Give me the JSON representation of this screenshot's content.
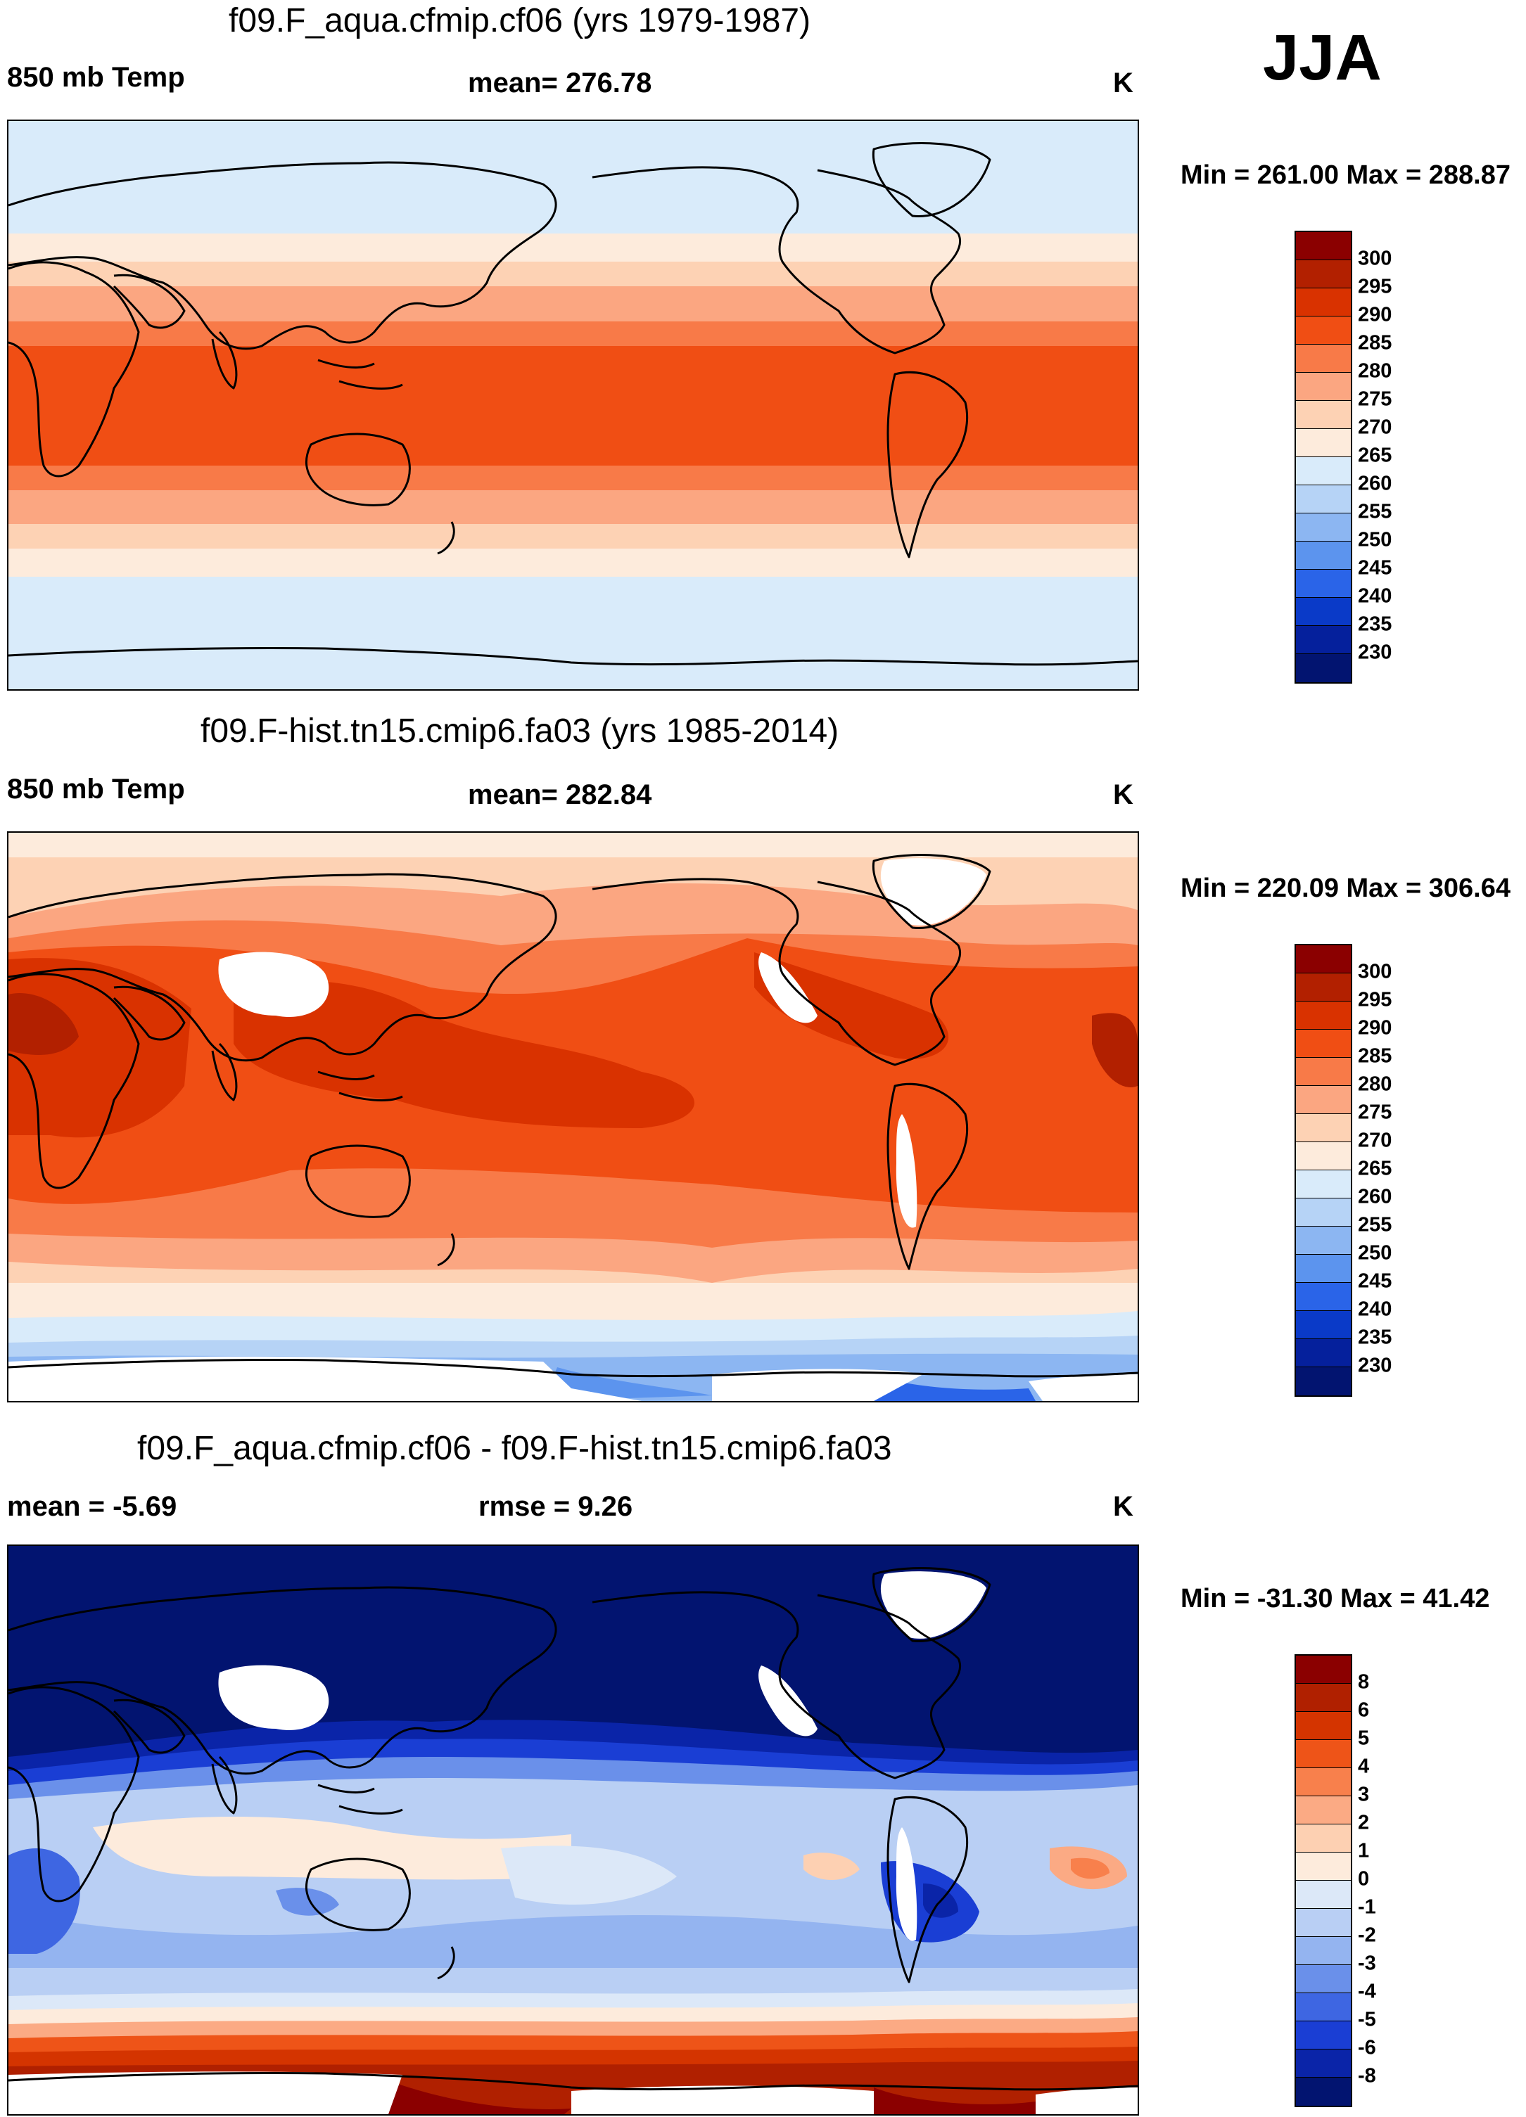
{
  "season": "JJA",
  "units_label": "K",
  "panels": [
    {
      "title": "f09.F_aqua.cfmip.cf06 (yrs 1979-1987)",
      "left_label": "850 mb Temp",
      "center_label": "mean= 276.78",
      "right_label": "K",
      "minmax": "Min = 261.00 Max = 288.87",
      "colorbar_ticks": [
        "300",
        "295",
        "290",
        "285",
        "280",
        "275",
        "270",
        "265",
        "260",
        "255",
        "250",
        "245",
        "240",
        "235",
        "230"
      ]
    },
    {
      "title": "f09.F-hist.tn15.cmip6.fa03 (yrs 1985-2014)",
      "left_label": "850 mb Temp",
      "center_label": "mean= 282.84",
      "right_label": "K",
      "minmax": "Min = 220.09 Max = 306.64",
      "colorbar_ticks": [
        "300",
        "295",
        "290",
        "285",
        "280",
        "275",
        "270",
        "265",
        "260",
        "255",
        "250",
        "245",
        "240",
        "235",
        "230"
      ]
    },
    {
      "title": "f09.F_aqua.cfmip.cf06 - f09.F-hist.tn15.cmip6.fa03",
      "left_label": "mean =  -5.69",
      "center_label": "rmse =   9.26",
      "right_label": "K",
      "minmax": "Min = -31.30 Max =  41.42",
      "colorbar_ticks": [
        "8",
        "6",
        "5",
        "4",
        "3",
        "2",
        "1",
        "0",
        "-1",
        "-2",
        "-3",
        "-4",
        "-5",
        "-6",
        "-8"
      ]
    }
  ],
  "colors": {
    "abs_scale": [
      "#8b0000",
      "#b22000",
      "#d93200",
      "#f04e14",
      "#f87a48",
      "#fba681",
      "#fdd2b4",
      "#fdebdc",
      "#d9ebfa",
      "#b6d3f6",
      "#8cb6f2",
      "#5c94ee",
      "#2a64e8",
      "#0a3ac8",
      "#05209c",
      "#021470"
    ],
    "diff_scale": [
      "#8b0000",
      "#b02000",
      "#d43400",
      "#ee5418",
      "#f8804c",
      "#fbaa84",
      "#fdd0b2",
      "#fdebdc",
      "#dce8f8",
      "#b9cff4",
      "#94b4f0",
      "#6a90ea",
      "#3e66e2",
      "#1a3ed4",
      "#0a24a8",
      "#021470"
    ],
    "coast": "#000000",
    "missing": "#ffffff"
  },
  "icons": {
    "coastline": "world-coastline-outline"
  }
}
